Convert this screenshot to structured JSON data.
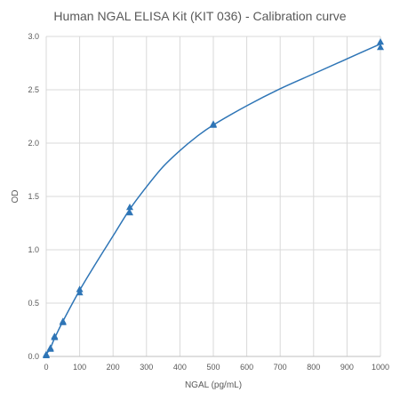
{
  "chart_data": {
    "type": "scatter",
    "title": "Human NGAL ELISA Kit (KIT 036) - Calibration curve",
    "xlabel": "NGAL (pg/mL)",
    "ylabel": "OD",
    "xlim": [
      0,
      1000
    ],
    "ylim": [
      0,
      3.0
    ],
    "x_ticks": [
      "0",
      "100",
      "200",
      "300",
      "400",
      "500",
      "600",
      "700",
      "800",
      "900",
      "1000"
    ],
    "y_ticks": [
      "0.0",
      "0.5",
      "1.0",
      "1.5",
      "2.0",
      "2.5",
      "3.0"
    ],
    "grid": true,
    "legend": "none",
    "marker": "triangle",
    "color": "#2E75B6",
    "series": [
      {
        "x": [
          0,
          0,
          12.5,
          12.5,
          25,
          25,
          50,
          50,
          100,
          100,
          250,
          250,
          500,
          500,
          1000,
          1000
        ],
        "y": [
          0.01,
          0.02,
          0.07,
          0.08,
          0.18,
          0.19,
          0.32,
          0.33,
          0.6,
          0.63,
          1.35,
          1.4,
          2.17,
          2.18,
          2.9,
          2.95
        ]
      }
    ],
    "fit_curve": {
      "x": [
        0,
        12.5,
        25,
        50,
        100,
        150,
        200,
        250,
        300,
        350,
        400,
        450,
        500,
        600,
        700,
        800,
        900,
        1000
      ],
      "y": [
        0.02,
        0.08,
        0.17,
        0.33,
        0.62,
        0.88,
        1.13,
        1.38,
        1.59,
        1.78,
        1.93,
        2.06,
        2.17,
        2.35,
        2.51,
        2.65,
        2.79,
        2.93
      ]
    }
  }
}
